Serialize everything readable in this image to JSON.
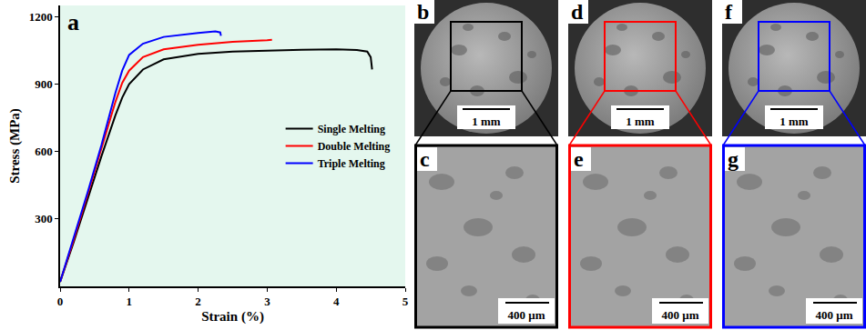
{
  "chart_data": {
    "type": "line",
    "annotations": [
      "a"
    ],
    "x_label": "Strain (%)",
    "y_label": "Stress (MPa)",
    "xlim": [
      0,
      5
    ],
    "xticks": [
      0,
      1,
      2,
      3,
      4,
      5
    ],
    "ylim": [
      0,
      1250
    ],
    "yticks": [
      300,
      600,
      900,
      1200
    ],
    "grid": false,
    "legend": "right",
    "series": [
      {
        "name": "Single Melting",
        "color": "#000000",
        "x": [
          0,
          0.2,
          0.4,
          0.6,
          0.8,
          0.9,
          1.0,
          1.2,
          1.5,
          2.0,
          2.5,
          3.0,
          3.5,
          4.0,
          4.3,
          4.45,
          4.5,
          4.52
        ],
        "values": [
          20,
          200,
          390,
          580,
          760,
          840,
          900,
          965,
          1010,
          1035,
          1045,
          1050,
          1053,
          1055,
          1052,
          1045,
          1020,
          965
        ]
      },
      {
        "name": "Double Melting",
        "color": "#ff0000",
        "x": [
          0,
          0.2,
          0.4,
          0.6,
          0.8,
          0.9,
          1.0,
          1.2,
          1.5,
          2.0,
          2.5,
          3.0,
          3.07
        ],
        "values": [
          20,
          210,
          410,
          610,
          820,
          905,
          960,
          1020,
          1055,
          1075,
          1088,
          1095,
          1097
        ]
      },
      {
        "name": "Triple Melting",
        "color": "#0000ff",
        "x": [
          0,
          0.2,
          0.4,
          0.6,
          0.8,
          0.9,
          1.0,
          1.2,
          1.5,
          2.0,
          2.25,
          2.32,
          2.33
        ],
        "values": [
          20,
          215,
          420,
          630,
          860,
          960,
          1030,
          1080,
          1110,
          1128,
          1135,
          1130,
          1115
        ]
      }
    ]
  },
  "panels": [
    {
      "label": "b",
      "scale_bar": "1 mm",
      "color": "#000000",
      "zoom": {
        "label": "c",
        "scale_bar": "400 μm"
      }
    },
    {
      "label": "d",
      "scale_bar": "1 mm",
      "color": "#ff0000",
      "zoom": {
        "label": "e",
        "scale_bar": "400 μm"
      }
    },
    {
      "label": "f",
      "scale_bar": "1 mm",
      "color": "#0000ff",
      "zoom": {
        "label": "g",
        "scale_bar": "400 μm"
      }
    }
  ]
}
